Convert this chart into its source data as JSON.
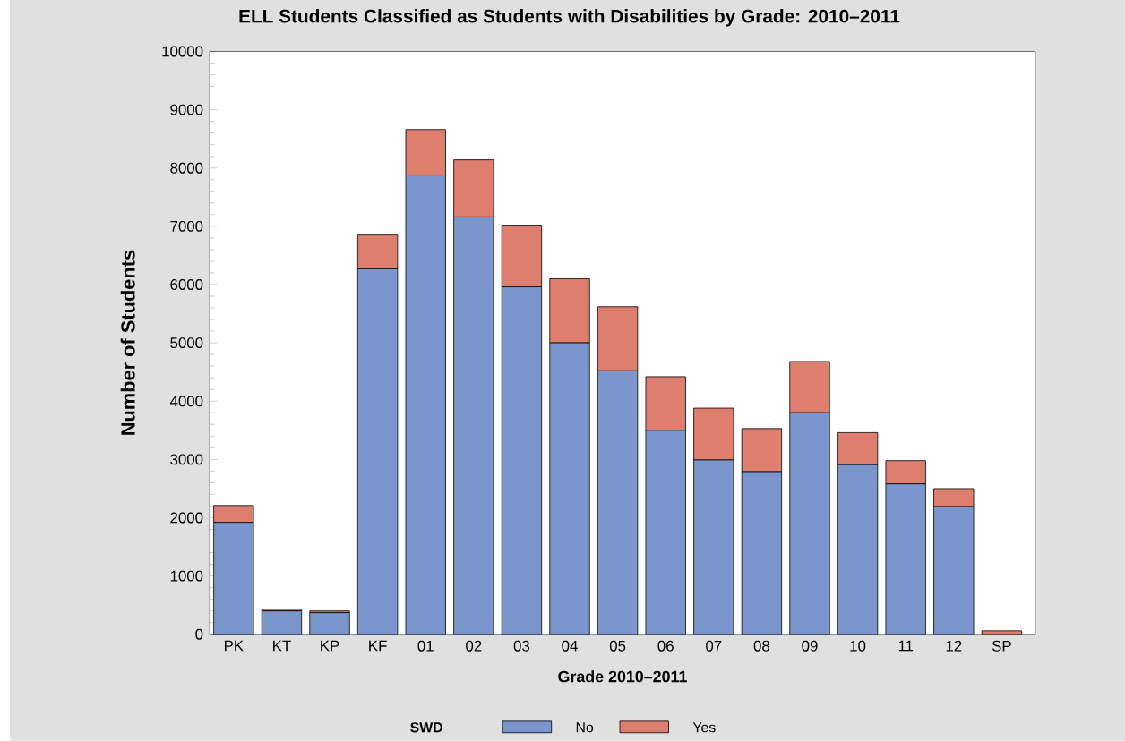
{
  "chart_data": {
    "type": "bar",
    "stacked": true,
    "title": "ELL Students Classified as Students with Disabilities by Grade: 2010–2011",
    "xlabel": "Grade 2010–2011",
    "ylabel": "Number of Students",
    "legend_title": "SWD",
    "categories": [
      "PK",
      "KT",
      "KP",
      "KF",
      "01",
      "02",
      "03",
      "04",
      "05",
      "06",
      "07",
      "08",
      "09",
      "10",
      "11",
      "12",
      "SP"
    ],
    "series": [
      {
        "name": "No",
        "color": "#7b96cc",
        "values": [
          1920,
          400,
          370,
          6270,
          7880,
          7160,
          5960,
          5000,
          4520,
          3500,
          2990,
          2790,
          3800,
          2910,
          2580,
          2190,
          0
        ]
      },
      {
        "name": "Yes",
        "color": "#de7e6e",
        "values": [
          290,
          30,
          30,
          580,
          780,
          980,
          1060,
          1100,
          1100,
          920,
          890,
          740,
          880,
          550,
          400,
          310,
          60
        ]
      }
    ],
    "ylim": [
      0,
      10000
    ],
    "yticks": [
      0,
      1000,
      2000,
      3000,
      4000,
      5000,
      6000,
      7000,
      8000,
      9000,
      10000
    ],
    "grid": false,
    "legend": "bottom"
  }
}
